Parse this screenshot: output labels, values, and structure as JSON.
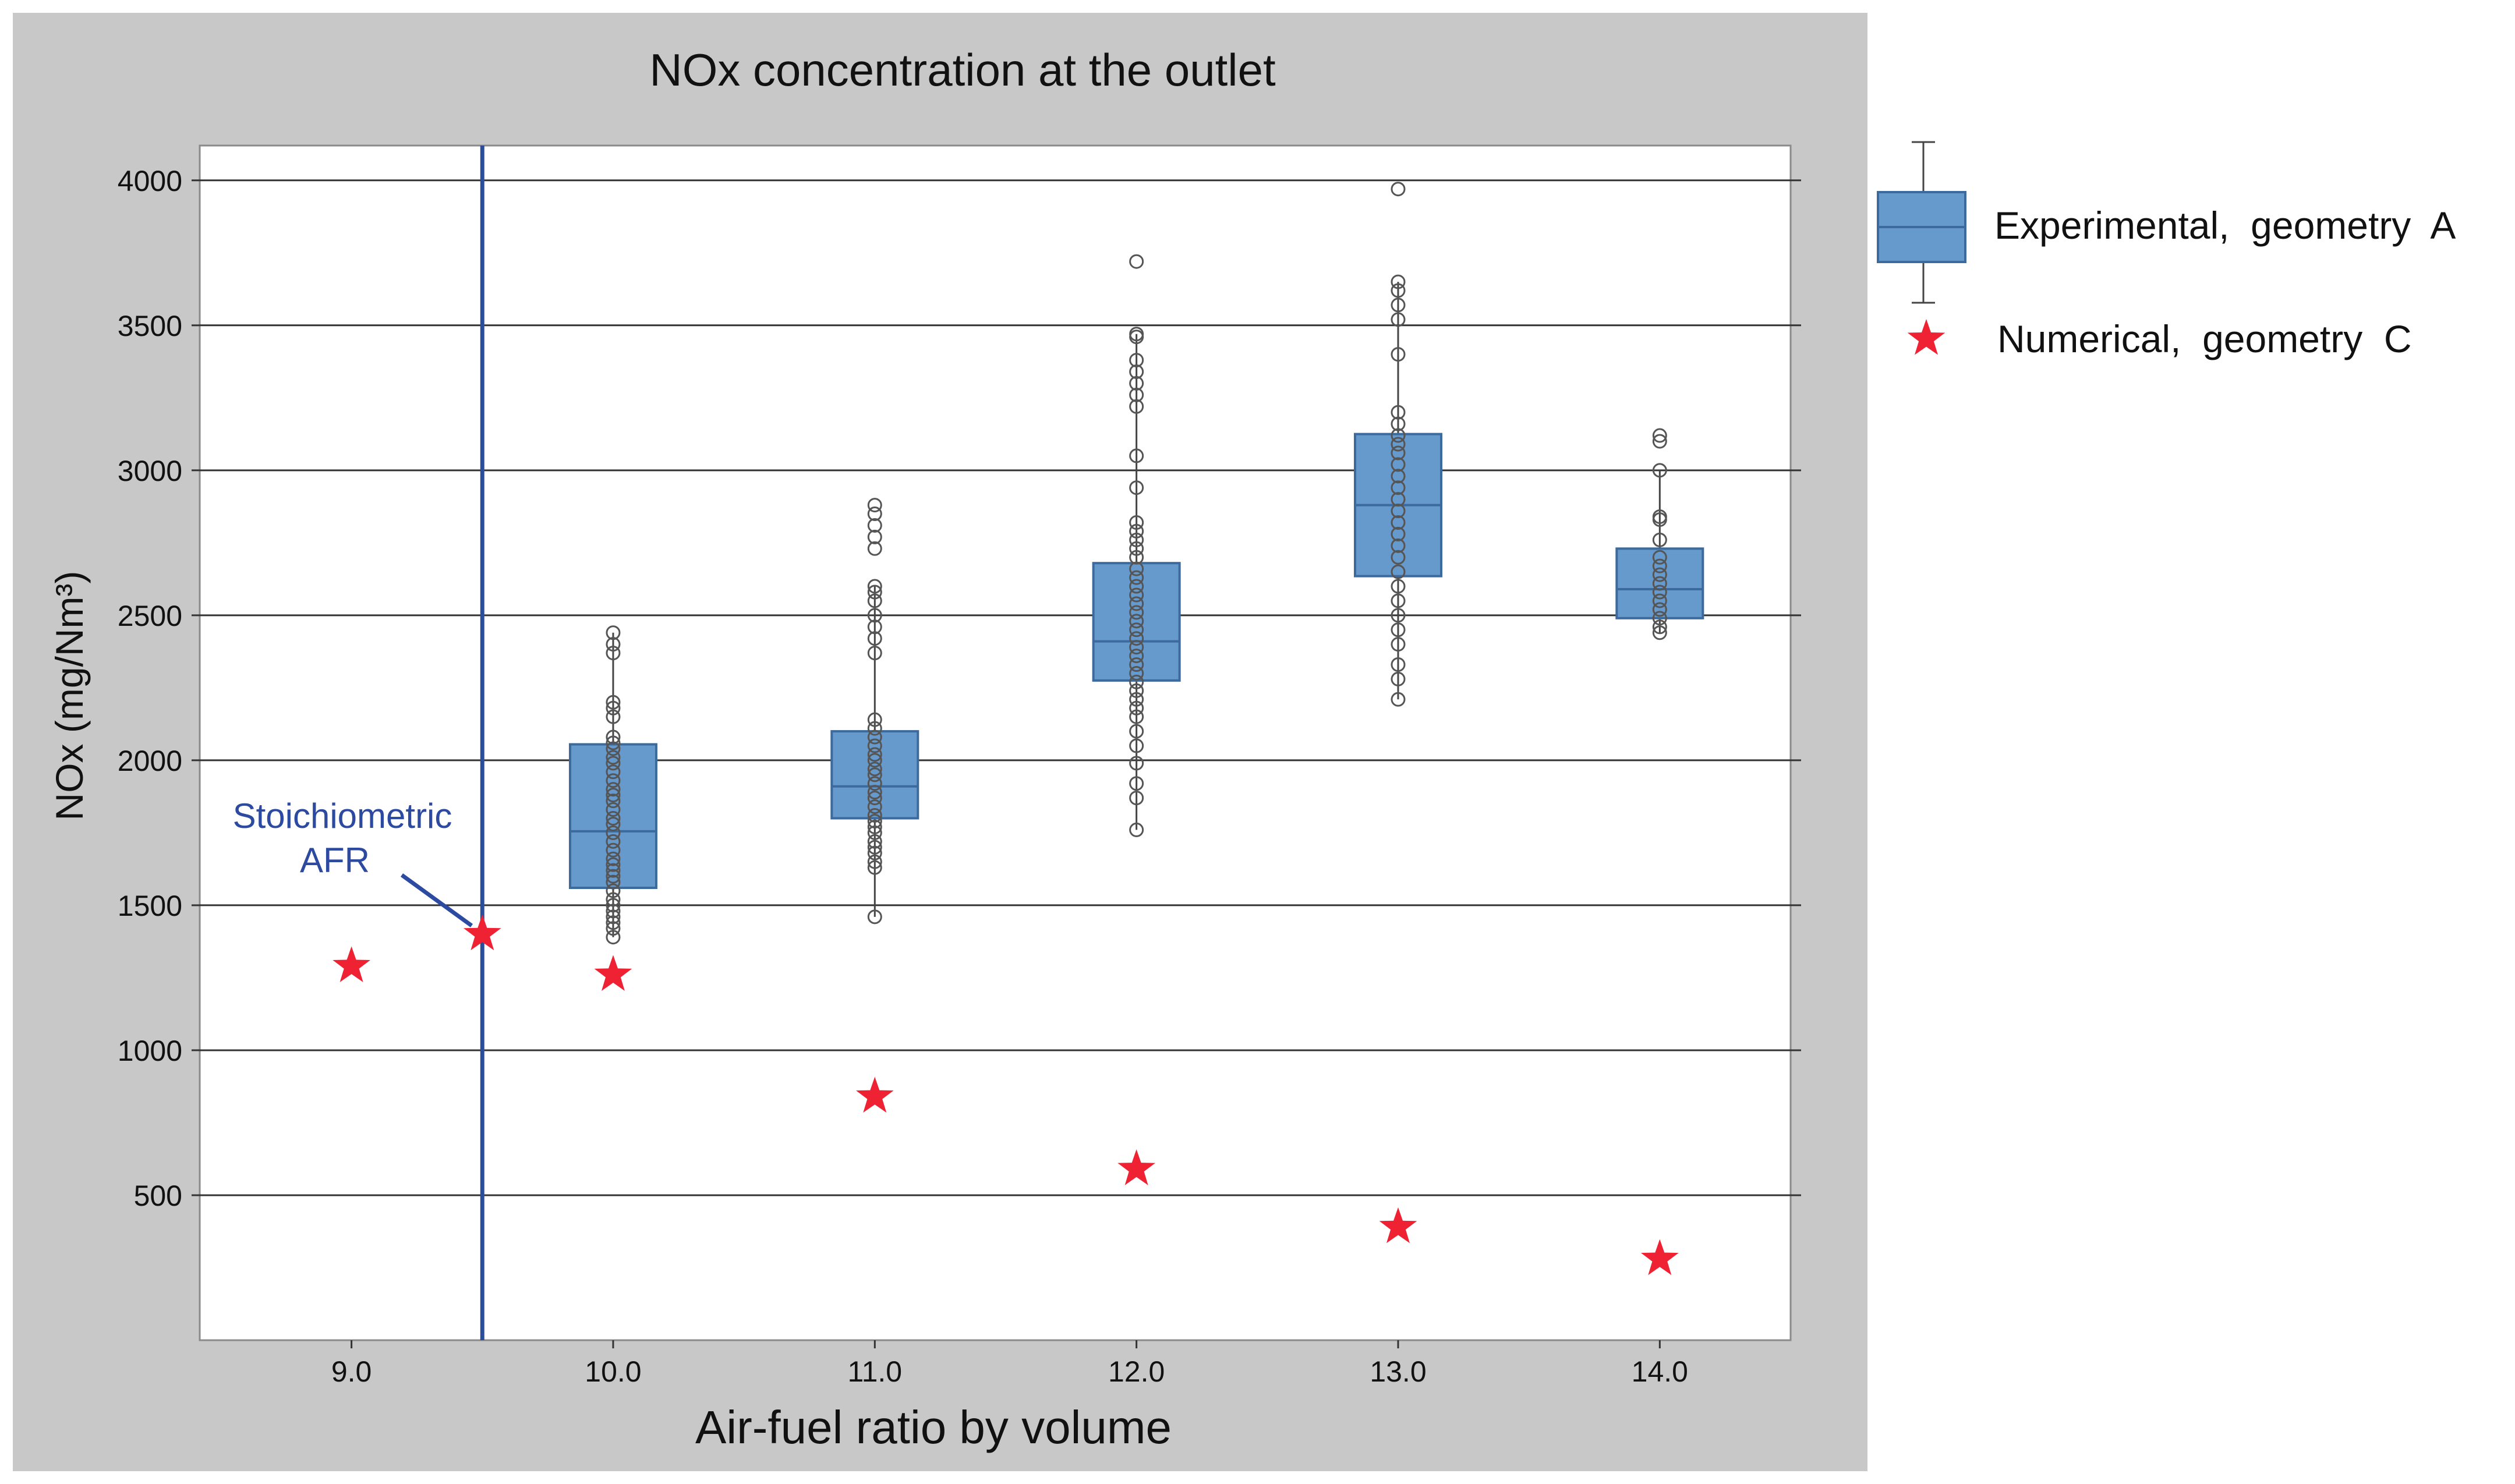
{
  "chart_data": {
    "type": "box",
    "title": "NOx concentration at the outlet",
    "xlabel": "Air-fuel ratio by volume",
    "ylabel": "NOx (mg/Nm³)",
    "xlim": [
      8.42,
      14.5
    ],
    "ylim": [
      0,
      4120
    ],
    "x_ticks": [
      9.0,
      10.0,
      11.0,
      12.0,
      13.0,
      14.0
    ],
    "x_tick_labels": [
      "9.0",
      "10.0",
      "11.0",
      "12.0",
      "13.0",
      "14.0"
    ],
    "y_ticks": [
      500,
      1000,
      1500,
      2000,
      2500,
      3000,
      3500,
      4000
    ],
    "y_tick_labels": [
      "500",
      "1000",
      "1500",
      "2000",
      "2500",
      "3000",
      "3500",
      "4000"
    ],
    "grid": "horizontal",
    "legend": {
      "placement": "right",
      "entries": [
        "Experimental,  geometry  A",
        "Numerical,  geometry  C"
      ]
    },
    "colors": {
      "box_fill": "#6699cc",
      "box_stroke": "#3d6a9c",
      "star": "#ee2233",
      "vline": "#2b4e9c",
      "annotation": "#2b4aa0",
      "outer_bg": "#c8c8c8",
      "plot_bg": "#ffffff",
      "grid": "#333333",
      "points": "#555555"
    },
    "stoichiometric_line": {
      "x": 9.5,
      "label_line1": "Stoichiometric",
      "label_line2": "AFR"
    },
    "series": [
      {
        "name": "Experimental, geometry A",
        "type": "box",
        "boxes": [
          {
            "x": 10.0,
            "q1": 1560,
            "median": 1755,
            "q3": 2055,
            "whisker_low": 1390,
            "whisker_high": 2440,
            "points": [
              1390,
              1420,
              1440,
              1460,
              1480,
              1500,
              1520,
              1550,
              1580,
              1600,
              1620,
              1640,
              1660,
              1690,
              1720,
              1750,
              1780,
              1800,
              1830,
              1860,
              1880,
              1900,
              1930,
              1960,
              1990,
              2010,
              2040,
              2060,
              2080,
              2150,
              2180,
              2200,
              2370,
              2400,
              2440
            ]
          },
          {
            "x": 11.0,
            "q1": 1800,
            "median": 1910,
            "q3": 2100,
            "whisker_low": 1460,
            "whisker_high": 2600,
            "points": [
              1460,
              1630,
              1650,
              1680,
              1700,
              1720,
              1750,
              1770,
              1790,
              1810,
              1840,
              1870,
              1890,
              1920,
              1950,
              1970,
              2000,
              2020,
              2050,
              2080,
              2110,
              2140,
              2370,
              2420,
              2460,
              2500,
              2550,
              2580,
              2600,
              2730,
              2770,
              2810,
              2850,
              2880
            ]
          },
          {
            "x": 12.0,
            "q1": 2275,
            "median": 2410,
            "q3": 2680,
            "whisker_low": 1760,
            "whisker_high": 3470,
            "points": [
              1760,
              1870,
              1920,
              1990,
              2050,
              2100,
              2150,
              2180,
              2210,
              2240,
              2270,
              2300,
              2330,
              2360,
              2390,
              2420,
              2450,
              2480,
              2510,
              2540,
              2570,
              2600,
              2630,
              2660,
              2700,
              2730,
              2760,
              2790,
              2820,
              2940,
              3050,
              3220,
              3260,
              3300,
              3340,
              3380,
              3460,
              3470,
              3720
            ]
          },
          {
            "x": 13.0,
            "q1": 2635,
            "median": 2880,
            "q3": 3125,
            "whisker_low": 2210,
            "whisker_high": 3650,
            "points": [
              2210,
              2280,
              2330,
              2400,
              2450,
              2500,
              2550,
              2600,
              2650,
              2700,
              2740,
              2780,
              2820,
              2860,
              2900,
              2940,
              2980,
              3020,
              3060,
              3090,
              3120,
              3160,
              3200,
              3400,
              3520,
              3570,
              3620,
              3650,
              3970
            ]
          },
          {
            "x": 14.0,
            "q1": 2490,
            "median": 2590,
            "q3": 2730,
            "whisker_low": 2440,
            "whisker_high": 3000,
            "points": [
              2440,
              2460,
              2490,
              2520,
              2550,
              2580,
              2610,
              2640,
              2670,
              2700,
              2760,
              2830,
              2840,
              3000,
              3100,
              3120
            ]
          }
        ]
      },
      {
        "name": "Numerical, geometry C",
        "type": "scatter",
        "marker": "star",
        "x": [
          9.0,
          9.5,
          10.0,
          11.0,
          12.0,
          13.0,
          14.0
        ],
        "y": [
          1290,
          1400,
          1260,
          840,
          590,
          390,
          280
        ]
      }
    ]
  }
}
